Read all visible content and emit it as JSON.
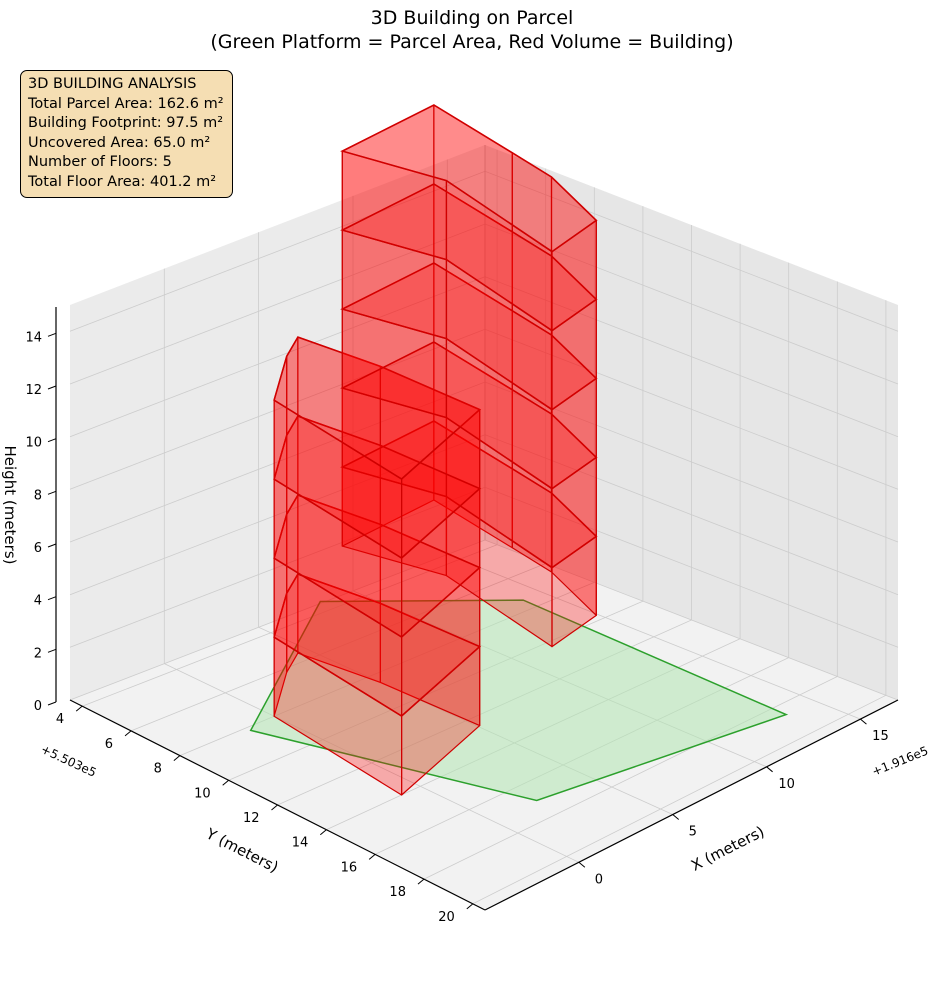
{
  "title_line1": "3D Building on Parcel",
  "title_line2": "(Green Platform = Parcel Area, Red Volume = Building)",
  "info_box": {
    "heading": "3D BUILDING ANALYSIS",
    "lines": [
      "Total Parcel Area: 162.6 m²",
      "Building Footprint: 97.5 m²",
      "Uncovered Area: 65.0 m²",
      "Number of Floors: 5",
      "Total Floor Area: 401.2 m²"
    ]
  },
  "colors": {
    "parcel_fill": "#b3e6b3",
    "parcel_edge": "#2ca02c",
    "building_fill": "#ff0000",
    "building_edge": "#d00000",
    "pane": "#f2f2f2",
    "grid": "#cccccc",
    "info_box_bg": "#f5deb3"
  },
  "chart_data": {
    "type": "3d-surface",
    "view": {
      "elevation_deg": 20,
      "azimuth_deg": 45
    },
    "axes": {
      "x": {
        "label": "X (meters)",
        "offset_text": "+1.916e5",
        "ticks": [
          "0",
          "5",
          "10",
          "15"
        ],
        "range": [
          -5,
          17
        ]
      },
      "y": {
        "label": "Y (meters)",
        "offset_text": "+5.503e5",
        "ticks": [
          "4",
          "6",
          "8",
          "10",
          "12",
          "14",
          "16",
          "18",
          "20"
        ],
        "range": [
          3.5,
          20.5
        ]
      },
      "z": {
        "label": "Height (meters)",
        "ticks": [
          "0",
          "2",
          "4",
          "6",
          "8",
          "10",
          "12",
          "14"
        ],
        "range": [
          0,
          15
        ]
      }
    },
    "grid": true,
    "parcel": {
      "name": "Parcel Area",
      "z": 0,
      "polygon_xy": [
        [
          -1.5,
          8.2
        ],
        [
          8.4,
          3.4
        ],
        [
          14.0,
          7.4
        ],
        [
          13.5,
          18.6
        ],
        [
          2.3,
          17.0
        ]
      ]
    },
    "building": {
      "name": "Building",
      "floors": 5,
      "floor_height_m": 3,
      "height_m": 15,
      "rows": [
        {
          "floors_z": [
            0,
            3,
            6,
            9
          ],
          "footprint_xy": [
            [
              3.0,
              6.2
            ],
            [
              4.5,
              5.5
            ],
            [
              5.0,
              8.5
            ],
            [
              5.1,
              12.5
            ],
            [
              -1.0,
              14.0
            ],
            [
              0.0,
              8.0
            ]
          ]
        },
        {
          "floors_z": [
            3,
            6,
            9,
            12,
            15
          ],
          "footprint_xy": [
            [
              7.5,
              5.0
            ],
            [
              13.0,
              4.5
            ],
            [
              12.0,
              8.5
            ],
            [
              11.5,
              10.5
            ],
            [
              10.0,
              13.5
            ],
            [
              7.0,
              14.0
            ],
            [
              8.5,
              8.5
            ]
          ]
        }
      ]
    }
  }
}
